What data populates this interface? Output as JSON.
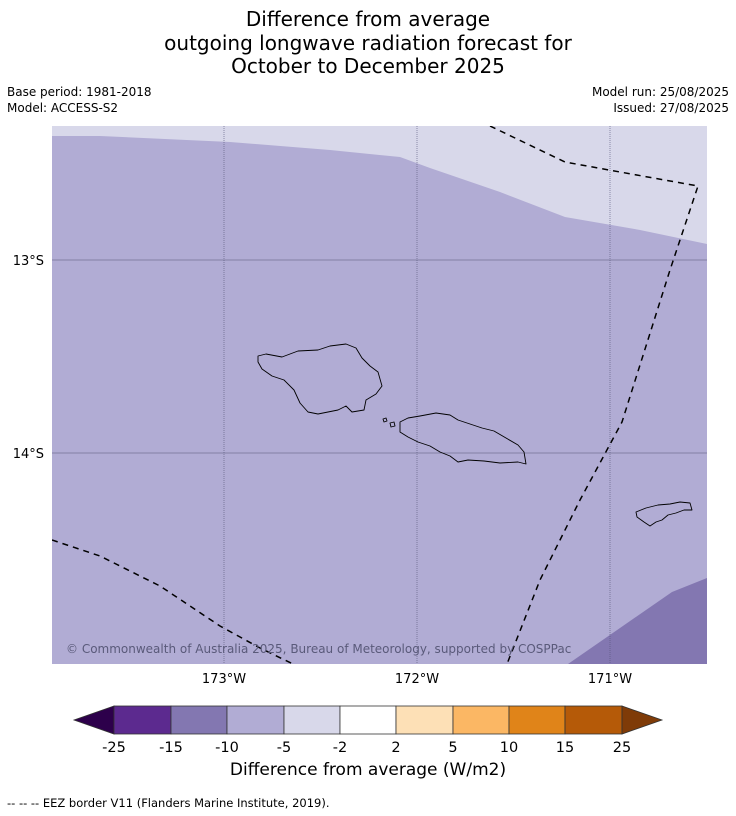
{
  "title": {
    "line1": "Difference from average",
    "line2": "outgoing longwave radiation forecast for",
    "line3": "October to December 2025"
  },
  "meta": {
    "base_period": "Base period: 1981-2018",
    "model": "Model: ACCESS-S2",
    "model_run": "Model run: 25/08/2025",
    "issued": "Issued: 27/08/2025"
  },
  "map": {
    "region": "Samoa",
    "lat_labels": [
      "13°S",
      "14°S"
    ],
    "lon_labels": [
      "173°W",
      "172°W",
      "171°W"
    ],
    "copyright": "© Commonwealth of Australia 2025, Bureau of Meteorology, supported by COSPPac",
    "colors": {
      "below_2_to_5": "#d8d8ea",
      "below_5_to_10": "#b1acd4",
      "below_10_to_15": "#8377b1",
      "eez_border": "#000000",
      "gridline": "#444466"
    }
  },
  "colorbar": {
    "label": "Difference from average (W/m2)",
    "ticks": [
      "-25",
      "-15",
      "-10",
      "-5",
      "-2",
      "2",
      "5",
      "10",
      "15",
      "25"
    ],
    "extend_low_color": "#2d004b",
    "extend_high_color": "#7f3b08",
    "bin_colors": [
      "#5c2a8f",
      "#8377b1",
      "#b1acd4",
      "#d8d8ea",
      "#ffffff",
      "#fde0b6",
      "#fbb764",
      "#e08419",
      "#b55a08"
    ]
  },
  "footer": {
    "legend": "--  --  -- EEZ border V11 (Flanders Marine Institute, 2019)."
  }
}
